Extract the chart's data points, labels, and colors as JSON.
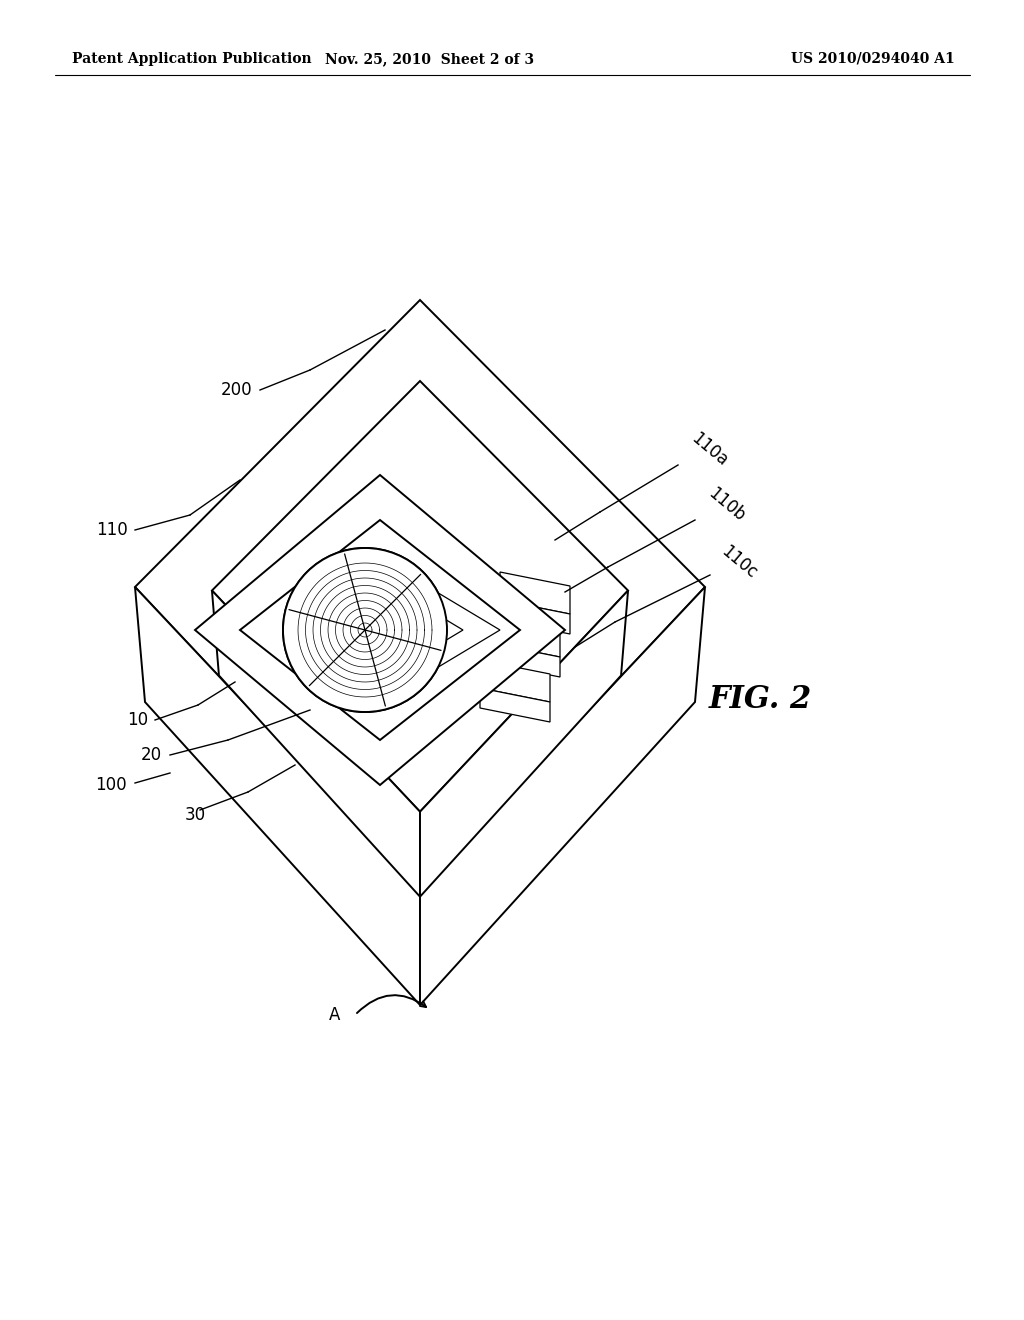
{
  "header_left": "Patent Application Publication",
  "header_center": "Nov. 25, 2010  Sheet 2 of 3",
  "header_right": "US 2010/0294040 A1",
  "fig_label": "FIG. 2",
  "background_color": "#ffffff",
  "line_color": "#000000",
  "lw_main": 1.4,
  "lw_thin": 0.9,
  "label_fs": 12,
  "header_fs": 10,
  "fig_fs": 22
}
